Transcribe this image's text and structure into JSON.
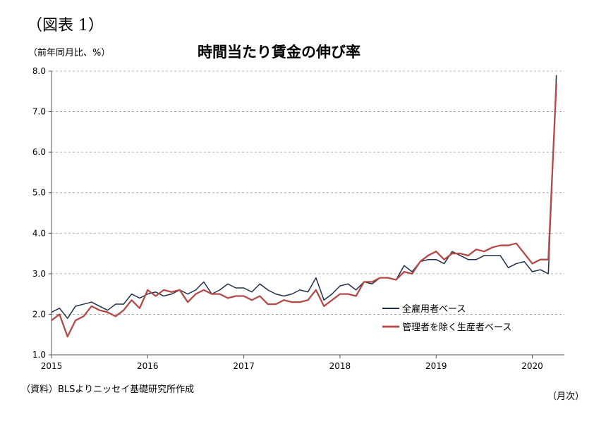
{
  "figure_label": "（図表 1）",
  "unit_label": "（前年同月比、%）",
  "title": "時間当たり賃金の伸び率",
  "source": "（資料）BLSよりニッセイ基礎研究所作成",
  "x_unit": "（月次）",
  "colors": {
    "series1": "#1f3049",
    "series2": "#b34a48",
    "grid": "#9a9a9a",
    "axis": "#555555"
  },
  "chart_data": {
    "type": "line",
    "xlabel": "",
    "ylabel": "（前年同月比、%）",
    "ylim": [
      1.0,
      8.0
    ],
    "yticks": [
      "1.0",
      "2.0",
      "3.0",
      "4.0",
      "5.0",
      "6.0",
      "7.0",
      "8.0"
    ],
    "xticks": [
      {
        "label": "2015",
        "x": "2015-01"
      },
      {
        "label": "2016",
        "x": "2016-01"
      },
      {
        "label": "2017",
        "x": "2017-01"
      },
      {
        "label": "2018",
        "x": "2018-01"
      },
      {
        "label": "2019",
        "x": "2019-01"
      },
      {
        "label": "2020",
        "x": "2020-01"
      }
    ],
    "grid": "horizontal-dashed",
    "legend_position": "bottom-right",
    "x": [
      "2015-01",
      "2015-02",
      "2015-03",
      "2015-04",
      "2015-05",
      "2015-06",
      "2015-07",
      "2015-08",
      "2015-09",
      "2015-10",
      "2015-11",
      "2015-12",
      "2016-01",
      "2016-02",
      "2016-03",
      "2016-04",
      "2016-05",
      "2016-06",
      "2016-07",
      "2016-08",
      "2016-09",
      "2016-10",
      "2016-11",
      "2016-12",
      "2017-01",
      "2017-02",
      "2017-03",
      "2017-04",
      "2017-05",
      "2017-06",
      "2017-07",
      "2017-08",
      "2017-09",
      "2017-10",
      "2017-11",
      "2017-12",
      "2018-01",
      "2018-02",
      "2018-03",
      "2018-04",
      "2018-05",
      "2018-06",
      "2018-07",
      "2018-08",
      "2018-09",
      "2018-10",
      "2018-11",
      "2018-12",
      "2019-01",
      "2019-02",
      "2019-03",
      "2019-04",
      "2019-05",
      "2019-06",
      "2019-07",
      "2019-08",
      "2019-09",
      "2019-10",
      "2019-11",
      "2019-12",
      "2020-01",
      "2020-02",
      "2020-03",
      "2020-04"
    ],
    "series": [
      {
        "name": "全雇用者ベース",
        "values": [
          2.05,
          2.15,
          1.9,
          2.2,
          2.25,
          2.3,
          2.2,
          2.1,
          2.25,
          2.25,
          2.5,
          2.4,
          2.5,
          2.55,
          2.45,
          2.5,
          2.6,
          2.5,
          2.6,
          2.8,
          2.5,
          2.6,
          2.75,
          2.65,
          2.65,
          2.55,
          2.75,
          2.6,
          2.5,
          2.45,
          2.5,
          2.6,
          2.55,
          2.9,
          2.35,
          2.5,
          2.7,
          2.75,
          2.6,
          2.8,
          2.75,
          2.9,
          2.9,
          2.85,
          3.2,
          3.05,
          3.3,
          3.35,
          3.35,
          3.25,
          3.55,
          3.45,
          3.35,
          3.35,
          3.45,
          3.45,
          3.45,
          3.15,
          3.25,
          3.3,
          3.05,
          3.1,
          3.0,
          7.9
        ]
      },
      {
        "name": "管理者を除く生産者ベース",
        "values": [
          1.85,
          2.0,
          1.45,
          1.85,
          1.95,
          2.2,
          2.1,
          2.05,
          1.95,
          2.1,
          2.35,
          2.15,
          2.6,
          2.45,
          2.6,
          2.55,
          2.6,
          2.3,
          2.5,
          2.6,
          2.5,
          2.5,
          2.4,
          2.45,
          2.45,
          2.35,
          2.45,
          2.25,
          2.25,
          2.35,
          2.3,
          2.3,
          2.35,
          2.6,
          2.2,
          2.35,
          2.5,
          2.5,
          2.45,
          2.8,
          2.8,
          2.9,
          2.9,
          2.85,
          3.05,
          3.0,
          3.3,
          3.45,
          3.55,
          3.35,
          3.5,
          3.5,
          3.45,
          3.6,
          3.55,
          3.65,
          3.7,
          3.7,
          3.75,
          3.5,
          3.25,
          3.35,
          3.35,
          7.7
        ]
      }
    ]
  }
}
